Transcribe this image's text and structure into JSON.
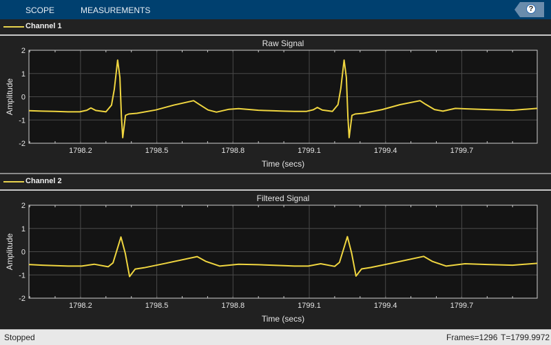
{
  "toolstrip": {
    "tabs": [
      {
        "label": "SCOPE"
      },
      {
        "label": "MEASUREMENTS"
      }
    ],
    "help_label": "?",
    "help_icon": "help-question-icon",
    "background": "#00406f"
  },
  "status": {
    "state": "Stopped",
    "frames": "Frames=1296",
    "time": "T=1799.9972"
  },
  "colors": {
    "trace": "#f0d640",
    "axes_bg": "#141414",
    "grid": "#4a4a4a",
    "panel_bg": "#212121"
  },
  "chart_data": [
    {
      "type": "line",
      "legend": "Channel 1",
      "title": "Raw Signal",
      "xlabel": "Time (secs)",
      "ylabel": "Amplitude",
      "xlim": [
        1797.997,
        1799.997
      ],
      "ylim": [
        -2,
        2
      ],
      "xticks": [
        "1798.2",
        "1798.5",
        "1798.8",
        "1799.1",
        "1799.4",
        "1799.7"
      ],
      "yticks": [
        "2",
        "1",
        "0",
        "-1",
        "-2"
      ],
      "grid": true,
      "series": [
        {
          "name": "Channel 1",
          "points": [
            [
              1797.997,
              -0.6
            ],
            [
              1798.05,
              -0.62
            ],
            [
              1798.1,
              -0.63
            ],
            [
              1798.151,
              -0.65
            ],
            [
              1798.197,
              -0.65
            ],
            [
              1798.225,
              -0.58
            ],
            [
              1798.241,
              -0.48
            ],
            [
              1798.26,
              -0.59
            ],
            [
              1798.3,
              -0.65
            ],
            [
              1798.322,
              -0.36
            ],
            [
              1798.333,
              0.33
            ],
            [
              1798.346,
              1.58
            ],
            [
              1798.355,
              0.83
            ],
            [
              1798.361,
              -0.86
            ],
            [
              1798.366,
              -1.76
            ],
            [
              1798.377,
              -0.8
            ],
            [
              1798.39,
              -0.74
            ],
            [
              1798.422,
              -0.71
            ],
            [
              1798.496,
              -0.57
            ],
            [
              1798.566,
              -0.36
            ],
            [
              1798.645,
              -0.17
            ],
            [
              1798.666,
              -0.32
            ],
            [
              1798.702,
              -0.57
            ],
            [
              1798.735,
              -0.66
            ],
            [
              1798.784,
              -0.54
            ],
            [
              1798.822,
              -0.51
            ],
            [
              1798.9,
              -0.58
            ],
            [
              1798.95,
              -0.6
            ],
            [
              1799.0,
              -0.62
            ],
            [
              1799.042,
              -0.63
            ],
            [
              1799.088,
              -0.63
            ],
            [
              1799.116,
              -0.56
            ],
            [
              1799.132,
              -0.46
            ],
            [
              1799.151,
              -0.57
            ],
            [
              1799.191,
              -0.63
            ],
            [
              1799.213,
              -0.34
            ],
            [
              1799.224,
              0.35
            ],
            [
              1799.237,
              1.58
            ],
            [
              1799.246,
              0.83
            ],
            [
              1799.252,
              -0.86
            ],
            [
              1799.257,
              -1.76
            ],
            [
              1799.268,
              -0.8
            ],
            [
              1799.281,
              -0.74
            ],
            [
              1799.313,
              -0.71
            ],
            [
              1799.387,
              -0.55
            ],
            [
              1799.457,
              -0.34
            ],
            [
              1799.536,
              -0.17
            ],
            [
              1799.557,
              -0.32
            ],
            [
              1799.593,
              -0.55
            ],
            [
              1799.626,
              -0.62
            ],
            [
              1799.675,
              -0.5
            ],
            [
              1799.713,
              -0.52
            ],
            [
              1799.8,
              -0.55
            ],
            [
              1799.9,
              -0.58
            ],
            [
              1799.997,
              -0.5
            ]
          ]
        }
      ]
    },
    {
      "type": "line",
      "legend": "Channel 2",
      "title": "Filtered Signal",
      "xlabel": "Time (secs)",
      "ylabel": "Amplitude",
      "xlim": [
        1797.997,
        1799.997
      ],
      "ylim": [
        -2,
        2
      ],
      "xticks": [
        "1798.2",
        "1798.5",
        "1798.8",
        "1799.1",
        "1799.4",
        "1799.7"
      ],
      "yticks": [
        "2",
        "1",
        "0",
        "-1",
        "-2"
      ],
      "grid": true,
      "series": [
        {
          "name": "Channel 2",
          "points": [
            [
              1797.997,
              -0.55
            ],
            [
              1798.05,
              -0.58
            ],
            [
              1798.1,
              -0.6
            ],
            [
              1798.151,
              -0.62
            ],
            [
              1798.205,
              -0.62
            ],
            [
              1798.254,
              -0.54
            ],
            [
              1798.309,
              -0.65
            ],
            [
              1798.328,
              -0.48
            ],
            [
              1798.359,
              0.63
            ],
            [
              1798.376,
              -0.07
            ],
            [
              1798.393,
              -1.07
            ],
            [
              1798.415,
              -0.75
            ],
            [
              1798.45,
              -0.69
            ],
            [
              1798.531,
              -0.51
            ],
            [
              1798.659,
              -0.21
            ],
            [
              1798.694,
              -0.42
            ],
            [
              1798.748,
              -0.62
            ],
            [
              1798.822,
              -0.54
            ],
            [
              1798.9,
              -0.56
            ],
            [
              1799.0,
              -0.6
            ],
            [
              1799.042,
              -0.62
            ],
            [
              1799.096,
              -0.62
            ],
            [
              1799.145,
              -0.52
            ],
            [
              1799.2,
              -0.63
            ],
            [
              1799.219,
              -0.46
            ],
            [
              1799.25,
              0.65
            ],
            [
              1799.267,
              -0.07
            ],
            [
              1799.284,
              -1.05
            ],
            [
              1799.306,
              -0.74
            ],
            [
              1799.341,
              -0.68
            ],
            [
              1799.422,
              -0.5
            ],
            [
              1799.55,
              -0.2
            ],
            [
              1799.585,
              -0.42
            ],
            [
              1799.639,
              -0.62
            ],
            [
              1799.713,
              -0.52
            ],
            [
              1799.8,
              -0.55
            ],
            [
              1799.9,
              -0.58
            ],
            [
              1799.997,
              -0.5
            ]
          ]
        }
      ]
    }
  ]
}
